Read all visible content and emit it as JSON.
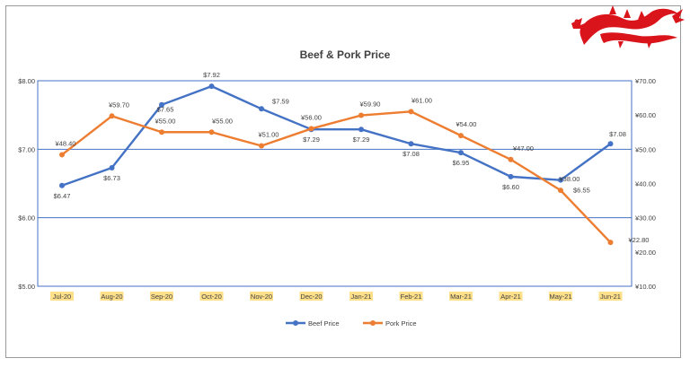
{
  "chart_data": {
    "type": "line",
    "title": "Beef & Pork Price",
    "categories": [
      "Jul-20",
      "Aug-20",
      "Sep-20",
      "Oct-20",
      "Nov-20",
      "Dec-20",
      "Jan-21",
      "Feb-21",
      "Mar-21",
      "Apr-21",
      "May-21",
      "Jun-21"
    ],
    "series": [
      {
        "name": "Beef Price",
        "axis": "left",
        "color": "#4472c4",
        "values": [
          6.47,
          6.73,
          7.65,
          7.92,
          7.59,
          7.29,
          7.29,
          7.08,
          6.95,
          6.6,
          6.55,
          7.08
        ],
        "labels": [
          "$6.47",
          "$6.73",
          "$7.65",
          "$7.92",
          "$7.59",
          "$7.29",
          "$7.29",
          "$7.08",
          "$6.95",
          "$6.60",
          "$6.55",
          "$7.08"
        ]
      },
      {
        "name": "Pork Price",
        "axis": "right",
        "color": "#ed7d31",
        "values": [
          48.4,
          59.7,
          55.0,
          55.0,
          51.0,
          56.0,
          59.9,
          61.0,
          54.0,
          47.0,
          38.0,
          22.8
        ],
        "labels": [
          "¥48.40",
          "¥59.70",
          "¥55.00",
          "¥55.00",
          "¥51.00",
          "¥56.00",
          "¥59.90",
          "¥61.00",
          "¥54.00",
          "¥47.00",
          "¥38.00",
          "¥22.80"
        ]
      }
    ],
    "y_left": {
      "min": 5,
      "max": 8,
      "ticks": [
        "$5.00",
        "$6.00",
        "$7.00",
        "$8.00"
      ]
    },
    "y_right": {
      "min": 10,
      "max": 70,
      "ticks": [
        "¥10.00",
        "¥20.00",
        "¥30.00",
        "¥40.00",
        "¥50.00",
        "¥60.00",
        "¥70.00"
      ]
    },
    "grid": true,
    "legend_position": "bottom",
    "xtick_highlight": "#ffe08a",
    "grid_color": "#4472c4"
  },
  "logo": {
    "name": "red-dragon-logo",
    "color": "#d9141b"
  }
}
